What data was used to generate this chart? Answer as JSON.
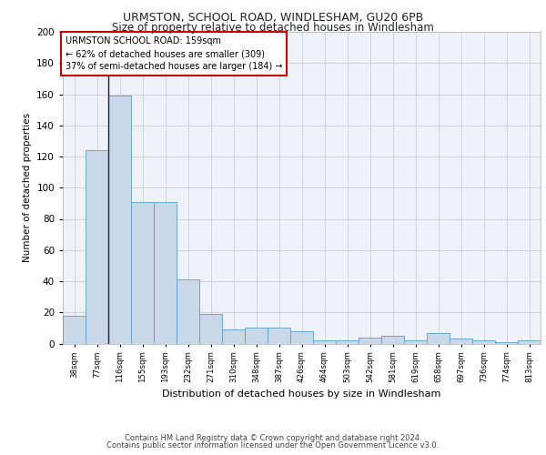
{
  "title1": "URMSTON, SCHOOL ROAD, WINDLESHAM, GU20 6PB",
  "title2": "Size of property relative to detached houses in Windlesham",
  "xlabel": "Distribution of detached houses by size in Windlesham",
  "ylabel": "Number of detached properties",
  "categories": [
    "38sqm",
    "77sqm",
    "116sqm",
    "155sqm",
    "193sqm",
    "232sqm",
    "271sqm",
    "310sqm",
    "348sqm",
    "387sqm",
    "426sqm",
    "464sqm",
    "503sqm",
    "542sqm",
    "581sqm",
    "619sqm",
    "658sqm",
    "697sqm",
    "736sqm",
    "774sqm",
    "813sqm"
  ],
  "values": [
    18,
    124,
    159,
    91,
    91,
    41,
    19,
    9,
    10,
    10,
    8,
    2,
    2,
    4,
    5,
    2,
    7,
    3,
    2,
    1,
    2
  ],
  "bar_color": "#c8d8e8",
  "bar_edge_color": "#5a9ec8",
  "grid_color": "#cccccc",
  "background_color": "#eef2f8",
  "property_index": 2,
  "property_label": "URMSTON SCHOOL ROAD: 159sqm",
  "annotation_line1": "← 62% of detached houses are smaller (309)",
  "annotation_line2": "37% of semi-detached houses are larger (184) →",
  "annotation_box_color": "#ffffff",
  "annotation_box_edge": "#cc0000",
  "vline_color": "#222222",
  "footer1": "Contains HM Land Registry data © Crown copyright and database right 2024.",
  "footer2": "Contains public sector information licensed under the Open Government Licence v3.0.",
  "ylim": [
    0,
    200
  ],
  "yticks": [
    0,
    20,
    40,
    60,
    80,
    100,
    120,
    140,
    160,
    180,
    200
  ],
  "fig_width": 6.0,
  "fig_height": 5.0,
  "dpi": 100
}
